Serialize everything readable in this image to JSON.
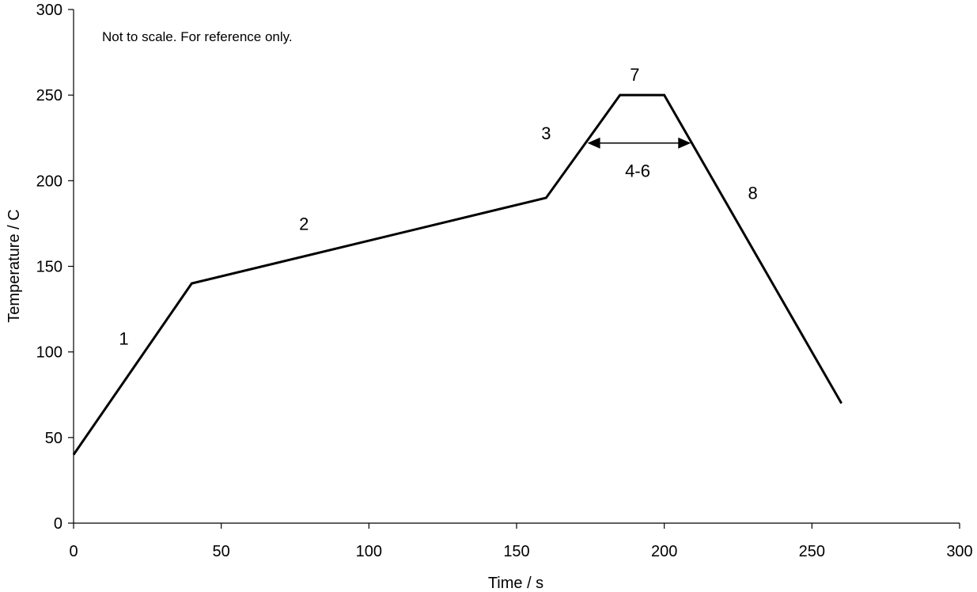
{
  "chart_data": {
    "type": "line",
    "title": "",
    "xlabel": "Time / s",
    "ylabel": "Temperature / C",
    "xlim": [
      0,
      300
    ],
    "ylim": [
      0,
      300
    ],
    "xticks": [
      0,
      50,
      100,
      150,
      200,
      250,
      300
    ],
    "yticks": [
      0,
      50,
      100,
      150,
      200,
      250,
      300
    ],
    "grid": false,
    "note": "Not to scale. For reference only.",
    "series": [
      {
        "x": [
          0,
          40,
          160,
          185,
          200,
          260
        ],
        "y": [
          40,
          140,
          190,
          250,
          250,
          70
        ]
      }
    ],
    "annotations": [
      {
        "text": "1",
        "x": 17,
        "y": 108
      },
      {
        "text": "2",
        "x": 78,
        "y": 175
      },
      {
        "text": "3",
        "x": 160,
        "y": 228
      },
      {
        "text": "7",
        "x": 190,
        "y": 262
      },
      {
        "text": "4-6",
        "x": 191,
        "y": 206
      },
      {
        "text": "8",
        "x": 230,
        "y": 193
      }
    ],
    "double_arrow": {
      "x1": 174,
      "x2": 209,
      "y": 222
    },
    "line_color": "#000000"
  }
}
